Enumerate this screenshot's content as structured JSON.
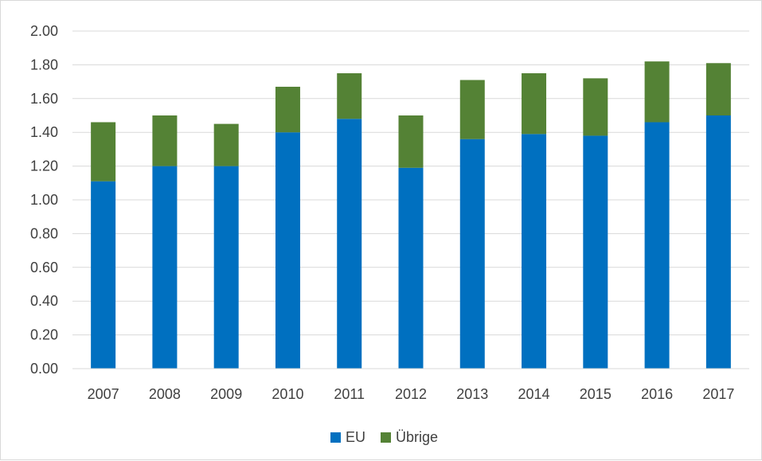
{
  "chart_data": {
    "type": "bar",
    "stacked": true,
    "categories": [
      "2007",
      "2008",
      "2009",
      "2010",
      "2011",
      "2012",
      "2013",
      "2014",
      "2015",
      "2016",
      "2017"
    ],
    "series": [
      {
        "name": "EU",
        "color": "#0070c0",
        "values": [
          1.11,
          1.2,
          1.2,
          1.4,
          1.48,
          1.19,
          1.36,
          1.39,
          1.38,
          1.46,
          1.5
        ]
      },
      {
        "name": "Übrige",
        "color": "#548235",
        "values": [
          0.35,
          0.3,
          0.25,
          0.27,
          0.27,
          0.31,
          0.35,
          0.36,
          0.34,
          0.36,
          0.31
        ]
      }
    ],
    "ylim": [
      0,
      2.0
    ],
    "yticks": [
      "0.00",
      "0.20",
      "0.40",
      "0.60",
      "0.80",
      "1.00",
      "1.20",
      "1.40",
      "1.60",
      "1.80",
      "2.00"
    ],
    "grid": true,
    "legend": "bottom",
    "title": "",
    "xlabel": "",
    "ylabel": ""
  }
}
